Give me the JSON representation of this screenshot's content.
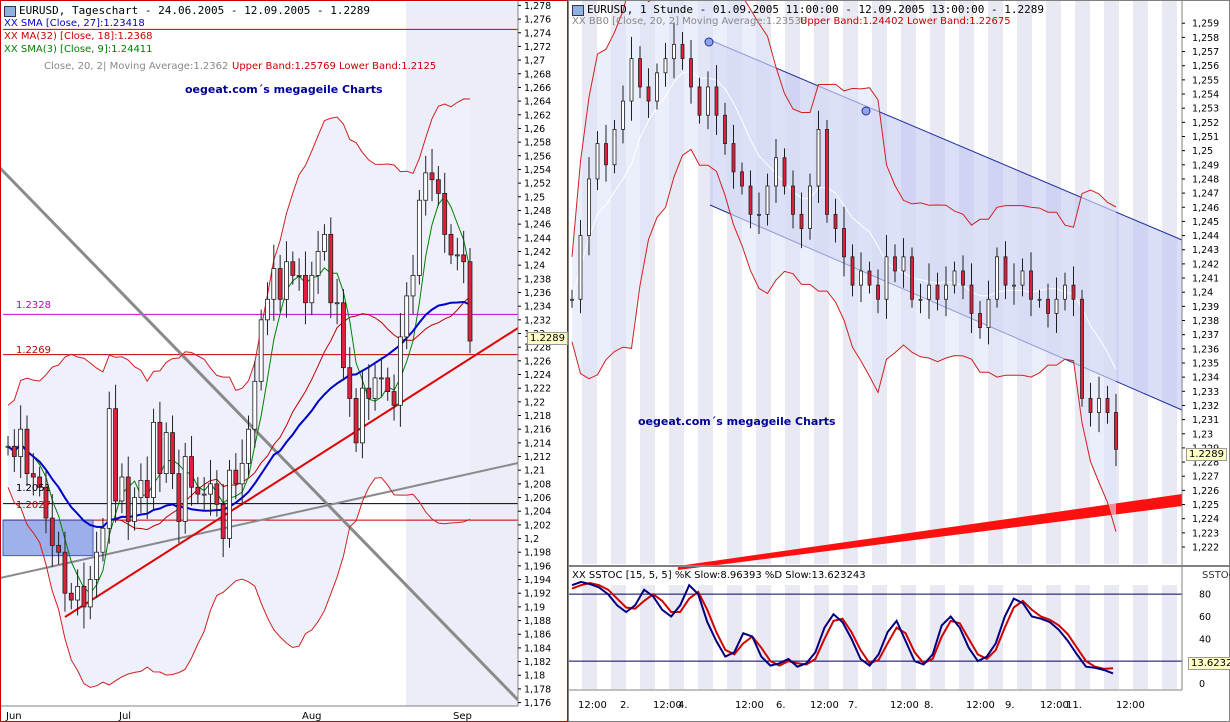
{
  "left": {
    "header": "EURUSD, Tageschart - 24.06.2005 - 12.09.2005 - 1.2289",
    "legend": [
      {
        "text": "XX SMA [Close, 27]:1.23418",
        "color": "#0000c8"
      },
      {
        "text": "XX MA(32) [Close, 18]:1.2368",
        "color": "#c80000"
      },
      {
        "text": "XX SMA(3) [Close, 9]:1.24411",
        "color": "#008000"
      }
    ],
    "bb_label": "Close, 20, 2| Moving Average:1.2362",
    "bb_bands": "Upper Band:1.25769 Lower Band:1.2125",
    "watermark": "oegeat.com´s megageile Charts",
    "price_tag": "1.2289",
    "level_labels": [
      "1.2328",
      "1.2269",
      "1.2051",
      "1.2027"
    ],
    "x_labels": [
      "Jun",
      "Jul",
      "Aug",
      "Sep"
    ],
    "y_min": 1.1755,
    "y_max": 1.2785
  },
  "right": {
    "header": "EURUSD, 1 Stunde - 01.09.2005 11:00:00 - 12.09.2005 13:00:00 - 1.2289",
    "bb_label": "XX BB0 [Close, 20, 2] Moving Average:1.23538",
    "bb_bands": "Upper Band:1.24402 Lower Band:1.22675",
    "watermark": "oegeat.com´s megageile Charts",
    "price_tag": "1.2289",
    "x_labels": [
      "12:00",
      "2.",
      "12:00",
      "4.",
      "12:00",
      "6.",
      "12:00",
      "7.",
      "12:00",
      "8.",
      "12:00",
      "9.",
      "12:00",
      "11.",
      "12:00"
    ],
    "y_min": 1.2208,
    "y_max": 1.2605
  },
  "stoch": {
    "header": "XX SSTOC [15, 5, 5] %K Slow:8.96393 %D Slow:13.623243",
    "axis_title": "SSTOC",
    "value_tag": "13.6232",
    "y_labels": [
      "80",
      "60",
      "40",
      "20",
      "0"
    ]
  },
  "chart_data": [
    {
      "type": "candlestick",
      "title": "EURUSD, Tageschart - 24.06.2005 - 12.09.2005 - 1.2289",
      "ylim": [
        1.1755,
        1.2785
      ],
      "x_ticks": [
        "Jun",
        "Jul",
        "Aug",
        "Sep"
      ],
      "y_ticks": [
        1.176,
        1.178,
        1.18,
        1.182,
        1.184,
        1.186,
        1.188,
        1.19,
        1.192,
        1.194,
        1.196,
        1.198,
        1.2,
        1.202,
        1.204,
        1.206,
        1.208,
        1.21,
        1.212,
        1.214,
        1.216,
        1.218,
        1.22,
        1.222,
        1.224,
        1.226,
        1.228,
        1.23,
        1.232,
        1.234,
        1.236,
        1.238,
        1.24,
        1.242,
        1.244,
        1.246,
        1.248,
        1.25,
        1.252,
        1.254,
        1.256,
        1.258,
        1.26,
        1.262,
        1.264,
        1.266,
        1.268,
        1.27,
        1.272,
        1.274,
        1.276,
        1.278
      ],
      "closes": [
        1.2135,
        1.212,
        1.216,
        1.2095,
        1.209,
        1.2075,
        1.203,
        1.199,
        1.198,
        1.192,
        1.191,
        1.193,
        1.19,
        1.194,
        1.198,
        1.2015,
        1.219,
        1.2055,
        1.209,
        1.2025,
        1.206,
        1.2085,
        1.206,
        1.217,
        1.2095,
        1.2155,
        1.2095,
        1.2025,
        1.212,
        1.2075,
        1.2065,
        1.2065,
        1.208,
        1.205,
        1.2,
        1.21,
        1.208,
        1.211,
        1.216,
        1.223,
        1.232,
        1.235,
        1.2395,
        1.235,
        1.2405,
        1.2385,
        1.2385,
        1.2345,
        1.2385,
        1.242,
        1.2445,
        1.2345,
        1.2345,
        1.225,
        1.2205,
        1.214,
        1.222,
        1.2205,
        1.2235,
        1.2235,
        1.2215,
        1.2195,
        1.2295,
        1.2355,
        1.2385,
        1.2495,
        1.2535,
        1.2525,
        1.2505,
        1.2445,
        1.2415,
        1.2415,
        1.2405,
        1.2289
      ],
      "horizontal_levels": [
        1.2328,
        1.2269,
        1.2051,
        1.2027,
        1.2745
      ],
      "sma27_last": 1.23418,
      "ma18_last": 1.2368,
      "sma9_last": 1.24411,
      "bollinger": {
        "period": 20,
        "dev": 2,
        "ma": 1.2362,
        "upper": 1.25769,
        "lower": 1.2125
      }
    },
    {
      "type": "candlestick",
      "title": "EURUSD, 1 Stunde - 01.09.2005 11:00:00 - 12.09.2005 13:00:00 - 1.2289",
      "ylim": [
        1.2208,
        1.2605
      ],
      "x_ticks": [
        "12:00",
        "2.",
        "12:00",
        "4.",
        "12:00",
        "6.",
        "12:00",
        "7.",
        "12:00",
        "8.",
        "12:00",
        "9.",
        "12:00",
        "11.",
        "12:00"
      ],
      "y_ticks": [
        1.222,
        1.223,
        1.224,
        1.225,
        1.226,
        1.227,
        1.228,
        1.229,
        1.23,
        1.231,
        1.232,
        1.233,
        1.234,
        1.235,
        1.236,
        1.237,
        1.238,
        1.239,
        1.24,
        1.241,
        1.242,
        1.243,
        1.244,
        1.245,
        1.246,
        1.247,
        1.248,
        1.249,
        1.25,
        1.251,
        1.252,
        1.253,
        1.254,
        1.255,
        1.256,
        1.257,
        1.258,
        1.259
      ],
      "closes": [
        1.2395,
        1.244,
        1.248,
        1.2505,
        1.249,
        1.2515,
        1.2535,
        1.2565,
        1.2545,
        1.2535,
        1.2555,
        1.2565,
        1.2575,
        1.2565,
        1.2545,
        1.2525,
        1.2545,
        1.2525,
        1.2505,
        1.2485,
        1.2475,
        1.2455,
        1.2455,
        1.2475,
        1.2495,
        1.2475,
        1.2455,
        1.2445,
        1.2475,
        1.2515,
        1.2455,
        1.2445,
        1.2425,
        1.2405,
        1.2415,
        1.2405,
        1.2395,
        1.2425,
        1.2415,
        1.2425,
        1.2395,
        1.2395,
        1.2405,
        1.2395,
        1.2405,
        1.2415,
        1.2405,
        1.2385,
        1.2375,
        1.2395,
        1.2425,
        1.2405,
        1.2405,
        1.2415,
        1.2395,
        1.2395,
        1.2385,
        1.2395,
        1.2405,
        1.2395,
        1.2325,
        1.2315,
        1.2325,
        1.2315,
        1.2289
      ],
      "bollinger": {
        "period": 20,
        "dev": 2,
        "ma": 1.23538,
        "upper": 1.24402,
        "lower": 1.22675
      }
    },
    {
      "type": "line",
      "title": "XX SSTOC [15, 5, 5] %K Slow:8.96393 %D Slow:13.623243",
      "ylim": [
        -5,
        90
      ],
      "y_ticks": [
        80,
        60,
        40,
        20,
        0
      ],
      "levels": [
        80,
        20
      ],
      "series": [
        {
          "name": "%K Slow",
          "color": "#000080",
          "values": [
            88,
            91,
            89,
            86,
            80,
            70,
            64,
            70,
            84,
            78,
            66,
            60,
            70,
            88,
            80,
            55,
            38,
            24,
            28,
            45,
            42,
            24,
            16,
            18,
            22,
            15,
            18,
            28,
            50,
            62,
            55,
            40,
            22,
            16,
            26,
            46,
            56,
            38,
            20,
            17,
            26,
            52,
            60,
            50,
            32,
            20,
            24,
            36,
            60,
            76,
            72,
            60,
            58,
            55,
            48,
            38,
            26,
            15,
            14,
            12,
            9
          ]
        },
        {
          "name": "%D Slow",
          "color": "#c00000",
          "values": [
            85,
            88,
            90,
            88,
            84,
            76,
            68,
            67,
            74,
            80,
            74,
            64,
            64,
            76,
            82,
            66,
            46,
            30,
            26,
            36,
            42,
            32,
            20,
            16,
            20,
            18,
            17,
            22,
            40,
            56,
            58,
            46,
            30,
            18,
            21,
            36,
            50,
            45,
            28,
            18,
            22,
            42,
            56,
            54,
            40,
            26,
            22,
            30,
            50,
            68,
            74,
            66,
            60,
            57,
            52,
            44,
            32,
            20,
            15,
            13,
            13.6
          ]
        }
      ]
    }
  ]
}
